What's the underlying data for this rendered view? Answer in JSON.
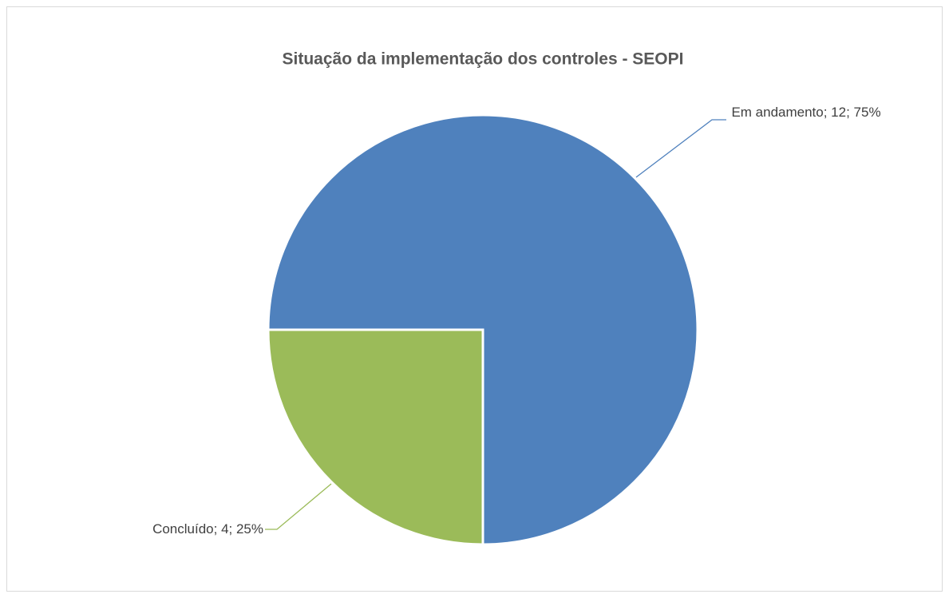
{
  "chart_data": {
    "type": "pie",
    "title": "Situação da implementação dos controles - SEOPI",
    "categories": [
      "Em andamento",
      "Concluído"
    ],
    "values": [
      12,
      4
    ],
    "value_labels": [
      "Em andamento; 12; 75%",
      "Concluído; 4; 25%"
    ],
    "colors": [
      "#4f81bd",
      "#9bbb59"
    ]
  }
}
